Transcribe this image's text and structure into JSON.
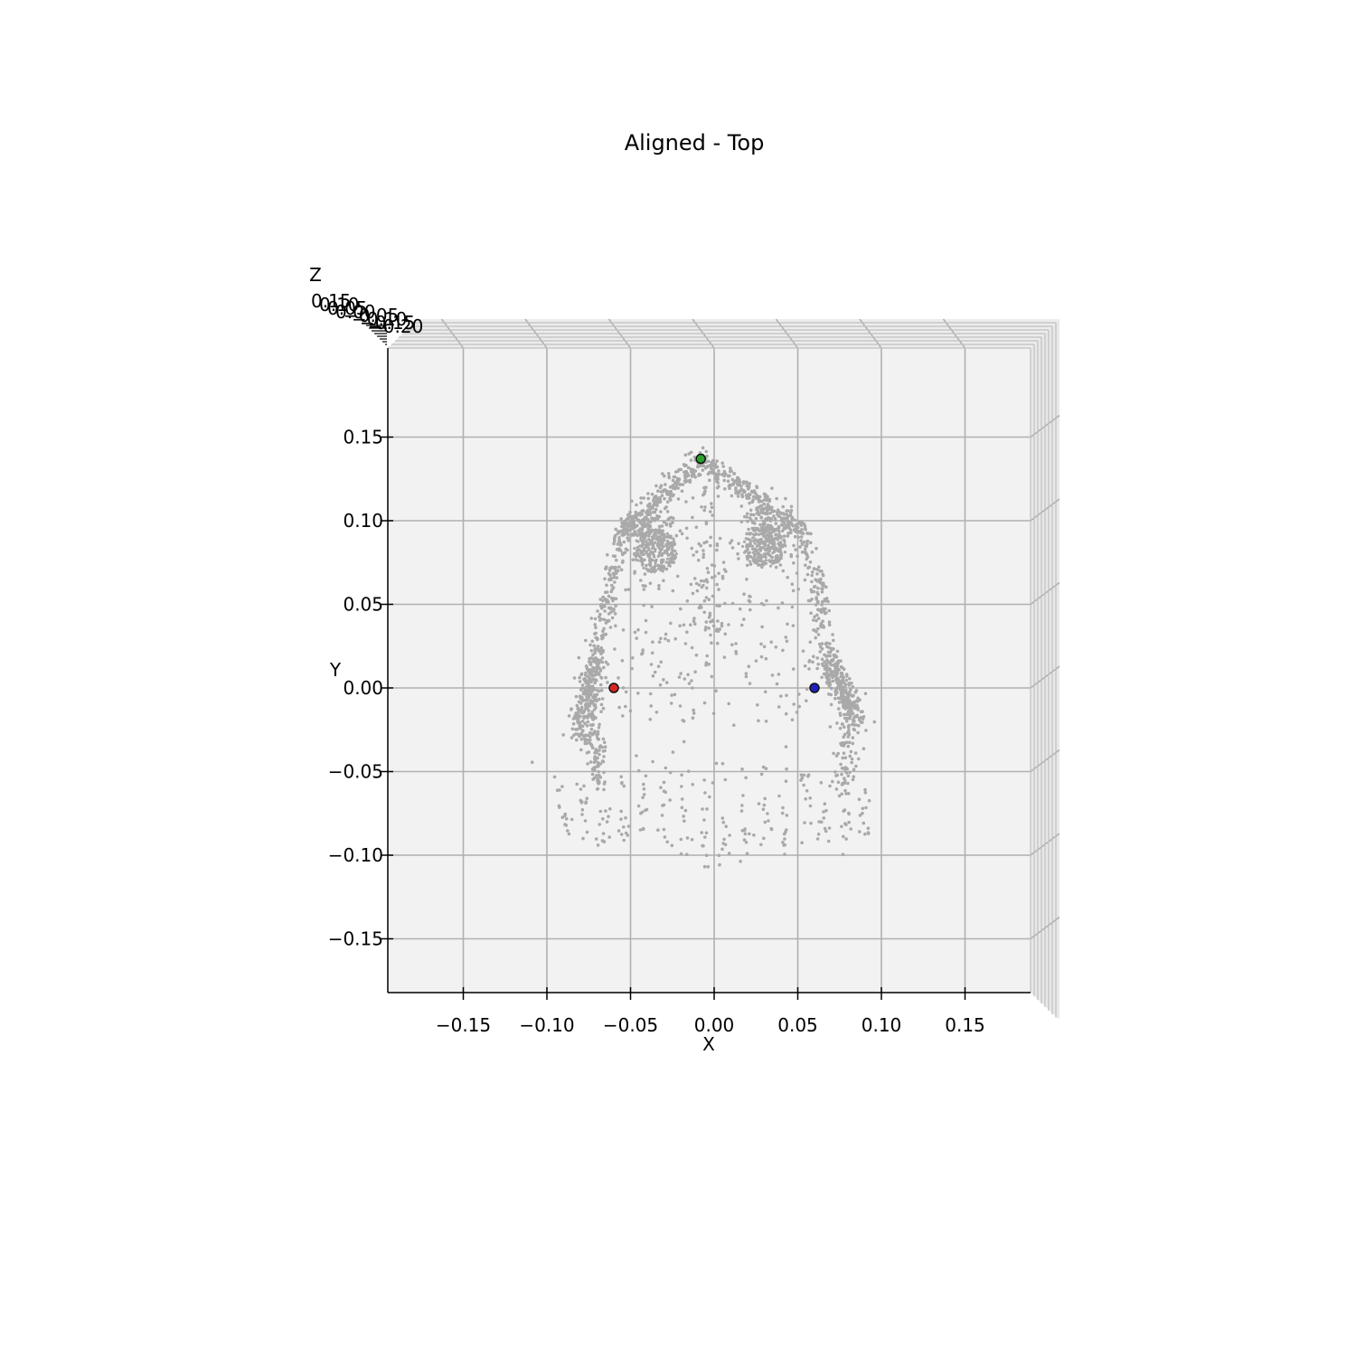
{
  "chart_data": {
    "type": "scatter",
    "title": "Aligned - Top",
    "xlabel": "X",
    "ylabel": "Y",
    "zlabel": "Z",
    "view": "top (3D projection looking down Z)",
    "xlim": [
      -0.195,
      0.19
    ],
    "ylim": [
      -0.182,
      0.205
    ],
    "x_ticks": [
      -0.15,
      -0.1,
      -0.05,
      0.0,
      0.05,
      0.1,
      0.15
    ],
    "x_tick_labels": [
      "−0.15",
      "−0.10",
      "−0.05",
      "0.00",
      "0.05",
      "0.10",
      "0.15"
    ],
    "y_ticks": [
      0.15,
      0.1,
      0.05,
      0.0,
      -0.05,
      -0.1,
      -0.15
    ],
    "y_tick_labels": [
      "0.15",
      "0.10",
      "0.05",
      "0.00",
      "−0.05",
      "−0.10",
      "−0.15"
    ],
    "z_tick_labels": [
      "0.15",
      "0.10",
      "0.05",
      "0.00",
      "−0.05",
      "−0.10",
      "−0.15",
      "−0.20"
    ],
    "grid": true,
    "pane_color": "#f2f2f2",
    "point_color": "#a9a9a9",
    "series": [
      {
        "kind": "point_cloud",
        "color": "#a9a9a9",
        "regions": {
          "nose_bridge": {
            "apex": [
              -0.008,
              0.137
            ],
            "left_end": [
              -0.055,
              0.09
            ],
            "right_end": [
              0.045,
              0.098
            ]
          },
          "left_eye_sphere": {
            "center": [
              -0.035,
              0.082
            ],
            "radius": 0.013
          },
          "right_eye_sphere": {
            "center": [
              0.03,
              0.085
            ],
            "radius": 0.013
          },
          "left_ear": {
            "from": [
              -0.072,
              0.015
            ],
            "to": [
              -0.08,
              -0.028
            ]
          },
          "right_ear": {
            "from": [
              0.068,
              0.018
            ],
            "to": [
              0.085,
              -0.02
            ]
          },
          "face_outline_left": [
            [
              -0.055,
              0.09
            ],
            [
              -0.065,
              0.05
            ],
            [
              -0.07,
              0.02
            ],
            [
              -0.072,
              -0.03
            ],
            [
              -0.068,
              -0.06
            ]
          ],
          "face_outline_right": [
            [
              0.05,
              0.095
            ],
            [
              0.062,
              0.06
            ],
            [
              0.068,
              0.02
            ],
            [
              0.08,
              -0.02
            ],
            [
              0.078,
              -0.06
            ]
          ],
          "lower_face": {
            "x_range": [
              -0.1,
              0.1
            ],
            "y_range": [
              -0.11,
              -0.04
            ]
          }
        }
      },
      {
        "name": "",
        "kind": "landmark",
        "color": "#2ca02c",
        "x": -0.008,
        "y": 0.137
      },
      {
        "name": "",
        "kind": "landmark",
        "color": "#d62728",
        "x": -0.06,
        "y": 0.0
      },
      {
        "name": "",
        "kind": "landmark",
        "color": "#1f1fbf",
        "x": 0.06,
        "y": 0.0
      }
    ]
  }
}
